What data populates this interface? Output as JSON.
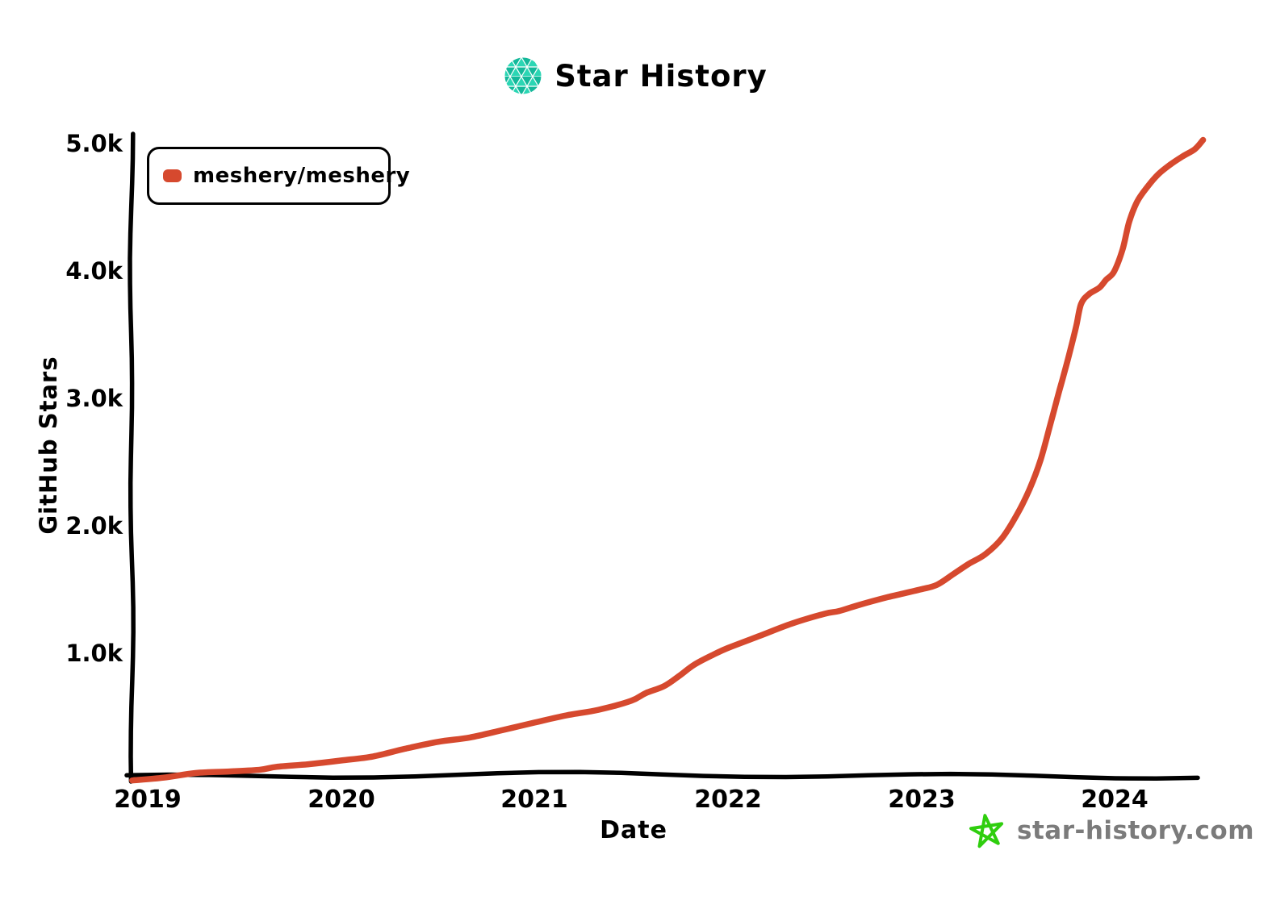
{
  "header": {
    "title": "Star History",
    "logo_icon": "star-history-mesh-globe",
    "logo_colors": {
      "tri_light": "#2BD6B4",
      "tri_dark": "#14B89A",
      "gap": "#ffffff"
    }
  },
  "legend": {
    "items": [
      {
        "label": "meshery/meshery",
        "color": "#D6492E",
        "marker_icon": "series-swatch"
      }
    ]
  },
  "chart_data": {
    "type": "line",
    "title": "Star History",
    "xlabel": "Date",
    "ylabel": "GitHub Stars",
    "style": "xkcd-sketch",
    "grid": false,
    "legend_position": "top-left",
    "xlim": [
      2018.92,
      2024.5
    ],
    "ylim": [
      0,
      5100
    ],
    "x_tick_labels": [
      "2019",
      "2020",
      "2021",
      "2022",
      "2023",
      "2024"
    ],
    "x_tick_values": [
      2019,
      2020,
      2021,
      2022,
      2023,
      2024
    ],
    "y_tick_labels": [
      "1.0k",
      "2.0k",
      "3.0k",
      "4.0k",
      "5.0k"
    ],
    "y_tick_values": [
      1000,
      2000,
      3000,
      4000,
      5000
    ],
    "series": [
      {
        "name": "meshery/meshery",
        "color": "#D6492E",
        "points": [
          [
            2018.92,
            10
          ],
          [
            2019.08,
            30
          ],
          [
            2019.25,
            55
          ],
          [
            2019.42,
            75
          ],
          [
            2019.58,
            100
          ],
          [
            2019.67,
            110
          ],
          [
            2019.83,
            120
          ],
          [
            2020.0,
            160
          ],
          [
            2020.17,
            195
          ],
          [
            2020.33,
            240
          ],
          [
            2020.5,
            295
          ],
          [
            2020.67,
            345
          ],
          [
            2020.83,
            400
          ],
          [
            2021.0,
            450
          ],
          [
            2021.17,
            515
          ],
          [
            2021.33,
            570
          ],
          [
            2021.5,
            630
          ],
          [
            2021.58,
            680
          ],
          [
            2021.67,
            745
          ],
          [
            2021.75,
            830
          ],
          [
            2021.83,
            900
          ],
          [
            2021.92,
            975
          ],
          [
            2022.0,
            1045
          ],
          [
            2022.17,
            1140
          ],
          [
            2022.33,
            1225
          ],
          [
            2022.5,
            1310
          ],
          [
            2022.58,
            1345
          ],
          [
            2022.67,
            1380
          ],
          [
            2022.83,
            1435
          ],
          [
            2023.0,
            1505
          ],
          [
            2023.08,
            1545
          ],
          [
            2023.17,
            1615
          ],
          [
            2023.25,
            1690
          ],
          [
            2023.33,
            1780
          ],
          [
            2023.42,
            1905
          ],
          [
            2023.5,
            2080
          ],
          [
            2023.56,
            2290
          ],
          [
            2023.62,
            2530
          ],
          [
            2023.67,
            2790
          ],
          [
            2023.71,
            3040
          ],
          [
            2023.74,
            3190
          ],
          [
            2023.77,
            3360
          ],
          [
            2023.8,
            3560
          ],
          [
            2023.83,
            3730
          ],
          [
            2023.87,
            3820
          ],
          [
            2023.92,
            3870
          ],
          [
            2023.96,
            3920
          ],
          [
            2024.0,
            3990
          ],
          [
            2024.04,
            4180
          ],
          [
            2024.08,
            4390
          ],
          [
            2024.12,
            4540
          ],
          [
            2024.17,
            4670
          ],
          [
            2024.23,
            4770
          ],
          [
            2024.29,
            4830
          ],
          [
            2024.35,
            4890
          ],
          [
            2024.42,
            4960
          ],
          [
            2024.46,
            5030
          ]
        ]
      }
    ]
  },
  "footer": {
    "site": "star-history.com",
    "star_icon": "hand-drawn-star",
    "star_color": "#2FCE0E",
    "text_color": "#7B7B7B"
  }
}
